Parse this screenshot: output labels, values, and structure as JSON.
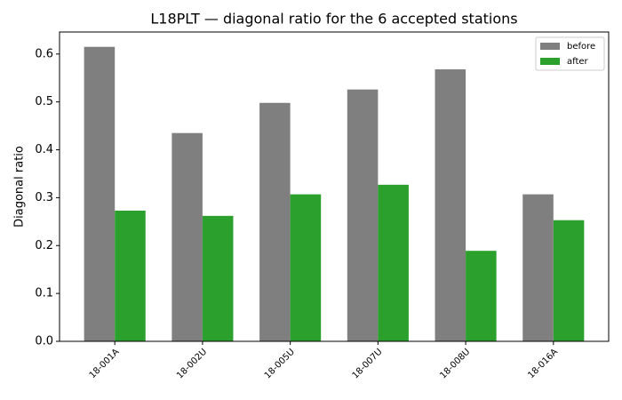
{
  "chart_data": {
    "type": "bar",
    "title": "L18PLT — diagonal ratio for the 6 accepted stations",
    "y_label": "Diagonal ratio",
    "categories": [
      "18-001A",
      "18-002U",
      "18-005U",
      "18-007U",
      "18-008U",
      "18-016A"
    ],
    "series": [
      {
        "name": "before",
        "color": "#7f7f7f",
        "values": [
          0.615,
          0.435,
          0.498,
          0.526,
          0.568,
          0.307
        ]
      },
      {
        "name": "after",
        "color": "#2ca02c",
        "values": [
          0.273,
          0.262,
          0.307,
          0.327,
          0.189,
          0.253
        ]
      }
    ],
    "ylim": [
      0,
      0.646
    ],
    "yticks": [
      {
        "value": 0,
        "label": "0.0"
      },
      0.1,
      0.2,
      0.3,
      0.4,
      0.5,
      0.6
    ],
    "legend": "upper right"
  }
}
